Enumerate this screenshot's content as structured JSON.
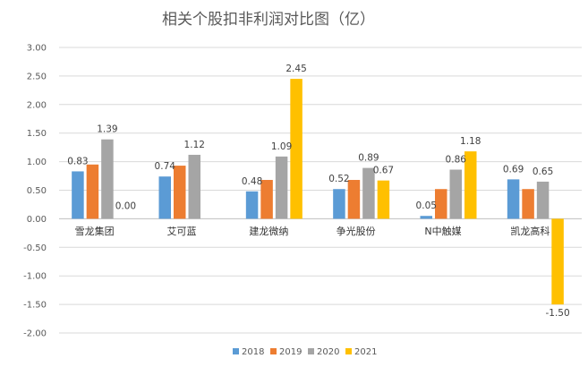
{
  "chart_data": {
    "type": "bar",
    "title": "相关个股扣非利润对比图（亿）",
    "xlabel": "",
    "ylabel": "",
    "ylim": [
      -2.0,
      3.0
    ],
    "yticks": [
      3.0,
      2.5,
      2.0,
      1.5,
      1.0,
      0.5,
      0.0,
      -0.5,
      -1.0,
      -1.5,
      -2.0
    ],
    "ytick_labels": [
      "3.00",
      "2.50",
      "2.00",
      "1.50",
      "1.00",
      "0.50",
      "0.00",
      "-0.50",
      "-1.00",
      "-1.50",
      "-2.00"
    ],
    "grid": "horizontal",
    "legend_position": "bottom",
    "categories": [
      "雪龙集团",
      "艾可蓝",
      "建龙微纳",
      "争光股份",
      "N中触媒",
      "凯龙高科"
    ],
    "series": [
      {
        "name": "2018",
        "color": "#5B9BD5",
        "values": [
          0.83,
          0.74,
          0.48,
          0.52,
          0.05,
          0.69
        ],
        "labels": [
          "0.83",
          "0.74",
          "0.48",
          "0.52",
          "0.05",
          "0.69"
        ]
      },
      {
        "name": "2019",
        "color": "#ED7D31",
        "values": [
          0.95,
          0.93,
          0.68,
          0.68,
          0.52,
          0.52
        ],
        "labels": [
          "",
          "",
          "",
          "",
          "",
          ""
        ]
      },
      {
        "name": "2020",
        "color": "#A5A5A5",
        "values": [
          1.39,
          1.12,
          1.09,
          0.89,
          0.86,
          0.65
        ],
        "labels": [
          "1.39",
          "1.12",
          "1.09",
          "0.89",
          "0.86",
          "0.65"
        ]
      },
      {
        "name": "2021",
        "color": "#FFC000",
        "values": [
          0.0,
          null,
          2.45,
          0.67,
          1.18,
          -1.5
        ],
        "labels": [
          "0.00",
          "",
          "2.45",
          "0.67",
          "1.18",
          "-1.50"
        ]
      }
    ]
  }
}
